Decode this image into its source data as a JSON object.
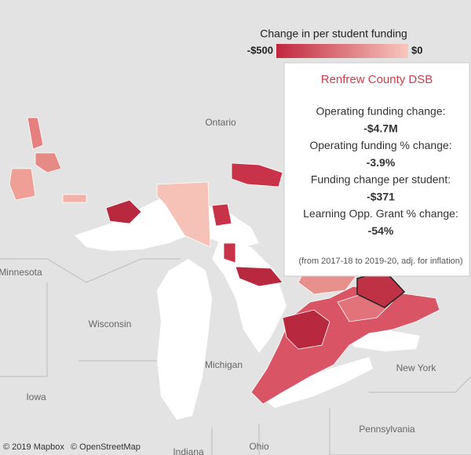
{
  "legend": {
    "title": "Change in per student funding",
    "min_label": "-$500",
    "max_label": "$0"
  },
  "tooltip": {
    "title": "Renfrew County DSB",
    "rows": [
      {
        "label": "Operating funding change:",
        "value": "-$4.7M"
      },
      {
        "label": "Operating funding % change:",
        "value": "-3.9%"
      },
      {
        "label": "Funding change per student:",
        "value": "-$371"
      },
      {
        "label": "Learning Opp. Grant % change:",
        "value": "-54%"
      }
    ],
    "note": "(from 2017-18 to 2019-20, adj. for inflation)"
  },
  "places": {
    "ontario": "Ontario",
    "minnesota": "Minnesota",
    "wisconsin": "Wisconsin",
    "michigan": "Michigan",
    "iowa": "Iowa",
    "ohio": "Ohio",
    "indiana": "Indiana",
    "new_york": "New York",
    "pennsylvania": "Pennsylvania"
  },
  "attribution": [
    "© 2019 Mapbox",
    "© OpenStreetMap"
  ]
}
